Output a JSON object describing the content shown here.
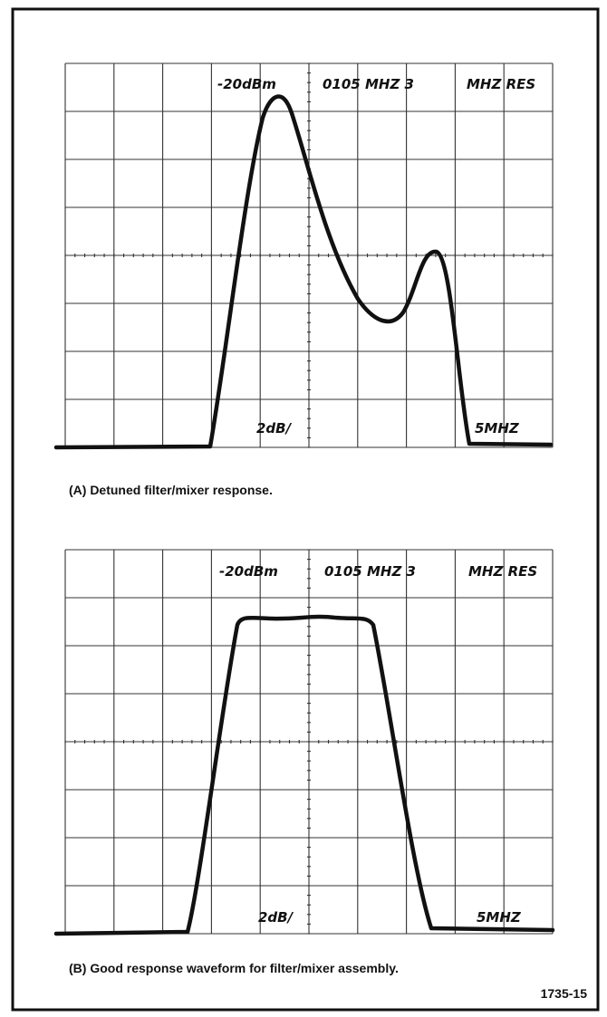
{
  "panel_a": {
    "labels": {
      "level": "-20dBm",
      "frequency": "0105 MHZ 3",
      "resolution": "MHZ RES",
      "vertical_scale": "2dB/",
      "horizontal_scale": "5MHZ"
    },
    "caption": "(A) Detuned filter/mixer response."
  },
  "panel_b": {
    "labels": {
      "level": "-20dBm",
      "frequency": "0105 MHZ 3",
      "resolution": "MHZ RES",
      "vertical_scale": "2dB/",
      "horizontal_scale": "5MHZ"
    },
    "caption": "(B) Good response waveform for filter/mixer assembly."
  },
  "figure_number": "1735-15"
}
